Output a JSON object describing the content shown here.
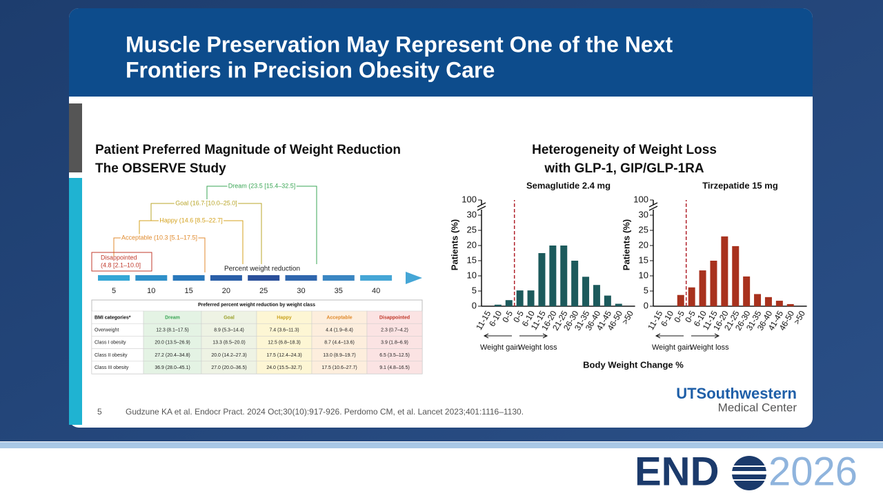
{
  "header": {
    "title_lines": [
      "Muscle Preservation May Represent One of the Next",
      "Frontiers in Precision Obesity Care"
    ]
  },
  "left": {
    "heading_lines": [
      "Patient Preferred Magnitude of Weight Reduction",
      "The OBSERVE Study"
    ],
    "timeline": {
      "label": "Percent weight reduction",
      "ticks": [
        5,
        10,
        15,
        20,
        25,
        30,
        35,
        40
      ],
      "brackets": [
        {
          "lines": [
            "Dream (23.5 [15.4–32.5]"
          ],
          "color": "#3aa655"
        },
        {
          "lines": [
            "Goal (16.7 [10.0–25.0]"
          ],
          "color": "#b9a62a"
        },
        {
          "lines": [
            "Happy (14.6 [8.5–22.7]"
          ],
          "color": "#d4a21e"
        },
        {
          "lines": [
            "Acceptable (10.3 [5.1–17.5]"
          ],
          "color": "#e08a2c"
        },
        {
          "lines": [
            "Disappointed",
            "(4.8 [2.1–10.0]"
          ],
          "color": "#c0392b"
        }
      ]
    },
    "table": {
      "caption": "Preferred percent weight reduction by weight class",
      "columns": [
        "BMI categories*",
        "Dream",
        "Goal",
        "Happy",
        "Acceptable",
        "Disappointed"
      ],
      "rows": [
        [
          "Overweight",
          "12.3 (8.1–17.5)",
          "8.9 (5.3–14.4)",
          "7.4 (3.6–11.3)",
          "4.4 (1.9–8.4)",
          "2.3 (0.7–4.2)"
        ],
        [
          "Class I obesity",
          "20.0 (13.5–26.9)",
          "13.3 (8.5–20.0)",
          "12.5 (6.8–18.3)",
          "8.7 (4.4–13.6)",
          "3.9 (1.8–6.9)"
        ],
        [
          "Class II obesity",
          "27.2 (20.4–34.8)",
          "20.0 (14.2–27.3)",
          "17.5 (12.4–24.3)",
          "13.0 (8.9–19.7)",
          "6.5 (3.5–12.5)"
        ],
        [
          "Class III obesity",
          "36.9 (28.0–45.1)",
          "27.0 (20.0–36.5)",
          "24.0 (15.5–32.7)",
          "17.5 (10.6–27.7)",
          "9.1 (4.8–16.5)"
        ]
      ]
    }
  },
  "right": {
    "heading_lines": [
      "Heterogeneity of Weight Loss",
      "with GLP-1, GIP/GLP-1RA"
    ],
    "x_label": "Body Weight Change %",
    "direction_labels": [
      "Weight gain",
      "Weight loss"
    ]
  },
  "chart_data": [
    {
      "type": "bar",
      "title": "Semaglutide 2.4 mg",
      "y_label": "Patients (%)",
      "categories": [
        "11-15",
        "6-10",
        "0-5",
        "0-5",
        "6-10",
        "11-15",
        "16-20",
        "21-25",
        "26-30",
        "31-35",
        "36-40",
        "41-45",
        "46-50",
        ">50"
      ],
      "values": [
        0,
        0.5,
        2,
        5.2,
        5.2,
        17.5,
        20,
        20,
        15,
        9.7,
        7,
        3.5,
        0.8,
        0
      ],
      "color": "#1c5a5c",
      "ylim": [
        0,
        30
      ],
      "yticks": [
        0,
        5,
        10,
        15,
        20,
        25,
        30
      ],
      "ybreak": 100
    },
    {
      "type": "bar",
      "title": "Tirzepatide 15 mg",
      "y_label": "Patients (%)",
      "categories": [
        "11-15",
        "6-10",
        "0-5",
        "0-5",
        "6-10",
        "11-15",
        "16-20",
        "21-25",
        "26-30",
        "31-35",
        "36-40",
        "41-45",
        "46-50",
        ">50"
      ],
      "values": [
        0,
        0,
        3.7,
        6.2,
        11.8,
        15,
        23,
        19.8,
        9.8,
        4,
        3,
        1.8,
        0.7,
        0
      ],
      "color": "#a8321e",
      "ylim": [
        0,
        30
      ],
      "yticks": [
        0,
        5,
        10,
        15,
        20,
        25,
        30
      ],
      "ybreak": 100
    }
  ],
  "footer": {
    "page": "5",
    "citation": "Gudzune KA et al. Endocr Pract. 2024 Oct;30(10):917-926. Perdomo CM, et al. Lancet 2023;401:1116–1130."
  },
  "logos": {
    "institution": [
      "UTSouthwestern",
      "Medical Center"
    ],
    "conference": [
      "END",
      "2026"
    ]
  }
}
